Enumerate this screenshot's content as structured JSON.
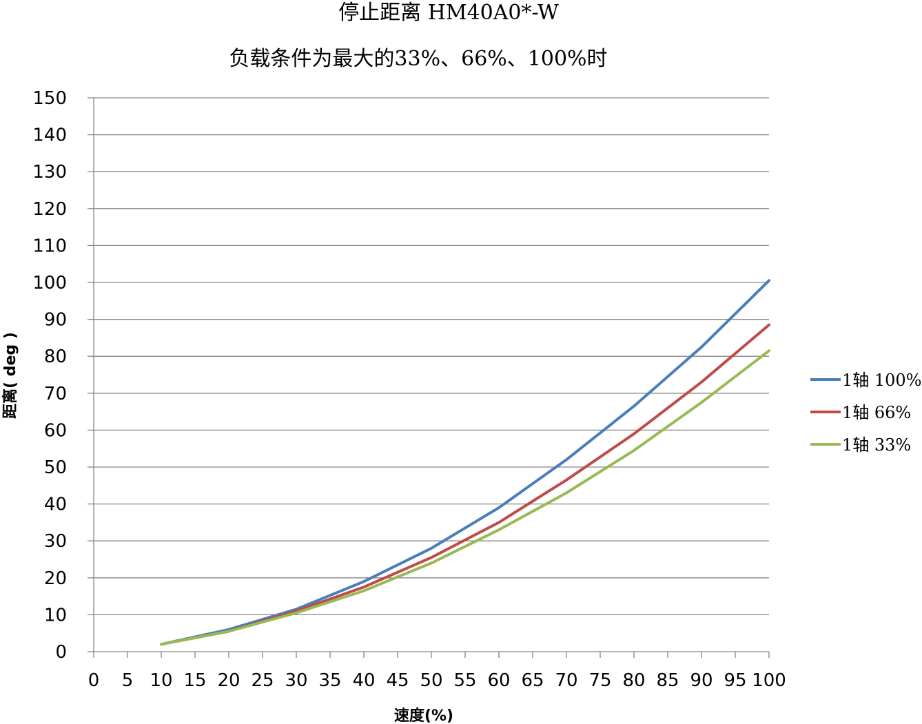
{
  "chart_data": {
    "type": "line",
    "title": "停止距离 HM40A0*-W",
    "subtitle": "负载条件为最大的33%、66%、100%时",
    "xlabel": "速度(%)",
    "ylabel": "距离( deg )",
    "x_ticks": [
      "0",
      "5",
      "10",
      "15",
      "20",
      "25",
      "30",
      "35",
      "40",
      "45",
      "50",
      "55",
      "60",
      "65",
      "70",
      "75",
      "80",
      "85",
      "90",
      "95",
      "100"
    ],
    "y_ticks": [
      "0",
      "10",
      "20",
      "30",
      "40",
      "50",
      "60",
      "70",
      "80",
      "90",
      "100",
      "110",
      "120",
      "130",
      "140",
      "150"
    ],
    "xlim": [
      0,
      100
    ],
    "ylim": [
      0,
      150
    ],
    "grid": "horizontal",
    "legend_position": "right",
    "x": [
      10,
      20,
      30,
      40,
      50,
      60,
      70,
      80,
      90,
      100
    ],
    "series": [
      {
        "name": "1轴 100%",
        "color": "#4a7ebb",
        "values": [
          2,
          6,
          11.5,
          19,
          28,
          39,
          52,
          66.5,
          82.5,
          100.5
        ]
      },
      {
        "name": "1轴 66%",
        "color": "#be4b48",
        "values": [
          2,
          5.5,
          11,
          17.5,
          25.5,
          35,
          46.5,
          59,
          73,
          88.5
        ]
      },
      {
        "name": "1轴 33%",
        "color": "#98b954",
        "values": [
          2,
          5.5,
          10.5,
          16.5,
          24,
          33,
          43,
          54.5,
          67.5,
          81.5
        ]
      }
    ]
  }
}
